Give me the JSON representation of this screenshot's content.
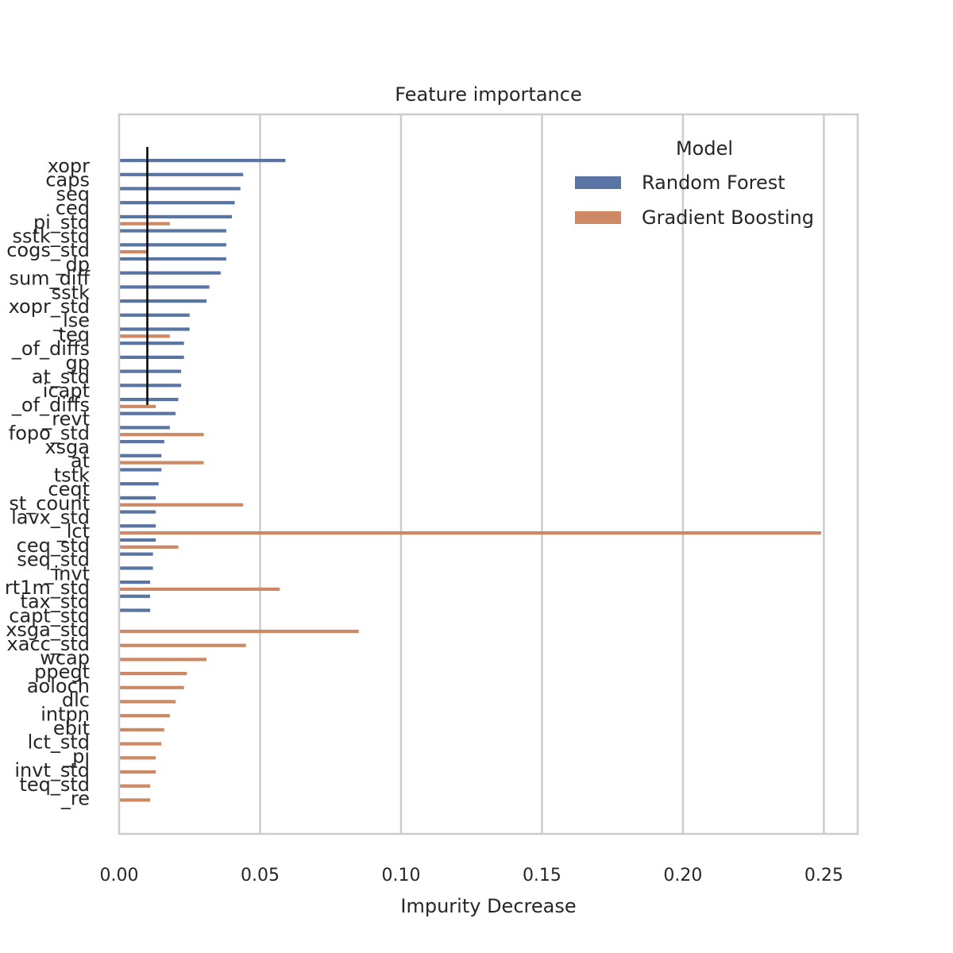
{
  "chart_data": {
    "type": "bar",
    "orientation": "horizontal",
    "title": "Feature importance",
    "xlabel": "Impurity Decrease",
    "ylabel": "",
    "xlim": [
      0,
      0.262
    ],
    "xticks": [
      0.0,
      0.05,
      0.1,
      0.15,
      0.2,
      0.25
    ],
    "xtick_labels": [
      "0.00",
      "0.05",
      "0.10",
      "0.15",
      "0.20",
      "0.25"
    ],
    "grid": "vertical",
    "legend": {
      "title": "Model",
      "placement": "top-right"
    },
    "reference_line": {
      "x": 0.01,
      "from_category": "xopr",
      "to_category": "_of_diffs"
    },
    "categories": [
      "xopr",
      "caps",
      "seq",
      "ceq",
      "pi_std",
      "sstk_std",
      "cogs_std",
      "_dp",
      "sum_diff",
      "sstk",
      "xopr_std",
      "_lse",
      "teq",
      "_of_diffs",
      "gp",
      "at_std",
      "icapt",
      "_of_diffs",
      "_revt",
      "fopo_std",
      "xsga",
      "at",
      "tstk",
      "ceqt",
      "st_count",
      "lavx_std",
      "_lct",
      "ceq_std",
      "seq_std",
      "_invt",
      "rt1m_std",
      "tax_std",
      "capt_std",
      "xsga_std",
      "xacc_std",
      "wcap",
      "ppegt",
      "aoloch",
      "dlc",
      "intpn",
      "ebit",
      "lct_std",
      "_pi",
      "invt_std",
      "teq_std",
      "_re"
    ],
    "series": [
      {
        "name": "Random Forest",
        "color": "#5875a4",
        "values": [
          0.059,
          0.044,
          0.043,
          0.041,
          0.04,
          0.038,
          0.038,
          0.038,
          0.036,
          0.032,
          0.031,
          0.025,
          0.025,
          0.023,
          0.023,
          0.022,
          0.022,
          0.021,
          0.02,
          0.018,
          0.016,
          0.015,
          0.015,
          0.014,
          0.013,
          0.013,
          0.013,
          0.013,
          0.012,
          0.012,
          0.011,
          0.011,
          0.011,
          null,
          null,
          null,
          null,
          null,
          null,
          null,
          null,
          null,
          null,
          null,
          null,
          null
        ]
      },
      {
        "name": "Gradient Boosting",
        "color": "#cc8963",
        "values": [
          null,
          null,
          null,
          null,
          0.018,
          null,
          0.01,
          null,
          null,
          null,
          null,
          null,
          0.018,
          null,
          null,
          null,
          null,
          0.013,
          null,
          0.03,
          null,
          0.03,
          null,
          null,
          0.044,
          null,
          0.249,
          0.021,
          null,
          null,
          0.057,
          null,
          null,
          0.085,
          0.045,
          0.031,
          0.024,
          0.023,
          0.02,
          0.018,
          0.016,
          0.015,
          0.013,
          0.013,
          0.011,
          0.011
        ]
      }
    ]
  }
}
